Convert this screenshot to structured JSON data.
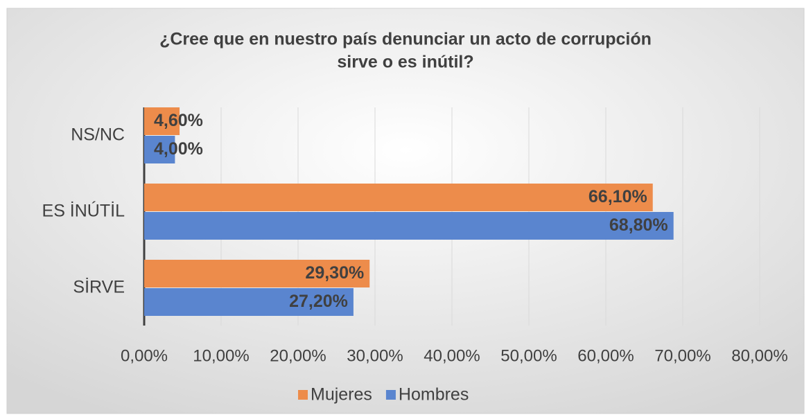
{
  "chart_data": {
    "type": "bar",
    "orientation": "horizontal",
    "title": [
      "¿Cree que en nuestro país denunciar un acto de corrupción",
      "sirve o es inútil?"
    ],
    "categories": [
      "NS/NC",
      "ES İNÚTİL",
      "SİRVE"
    ],
    "series": [
      {
        "name": "Mujeres",
        "color": "#ed8c4b",
        "values": [
          4.6,
          66.1,
          29.3
        ],
        "value_labels": [
          "4,60%",
          "66,10%",
          "29,30%"
        ]
      },
      {
        "name": "Hombres",
        "color": "#5a85cf",
        "values": [
          4.0,
          68.8,
          27.2
        ],
        "value_labels": [
          "4,00%",
          "68,80%",
          "27,20%"
        ]
      }
    ],
    "xlim": [
      0,
      80
    ],
    "xticks": [
      {
        "value": 0,
        "label": "0,00%"
      },
      {
        "value": 10,
        "label": "10,00%"
      },
      {
        "value": 20,
        "label": "20,00%"
      },
      {
        "value": 30,
        "label": "30,00%"
      },
      {
        "value": 40,
        "label": "40,00%"
      },
      {
        "value": 50,
        "label": "50,00%"
      },
      {
        "value": 60,
        "label": "60,00%"
      },
      {
        "value": 70,
        "label": "70,00%"
      },
      {
        "value": 80,
        "label": "80,00%"
      }
    ],
    "grid": true,
    "legend": "bottom"
  }
}
